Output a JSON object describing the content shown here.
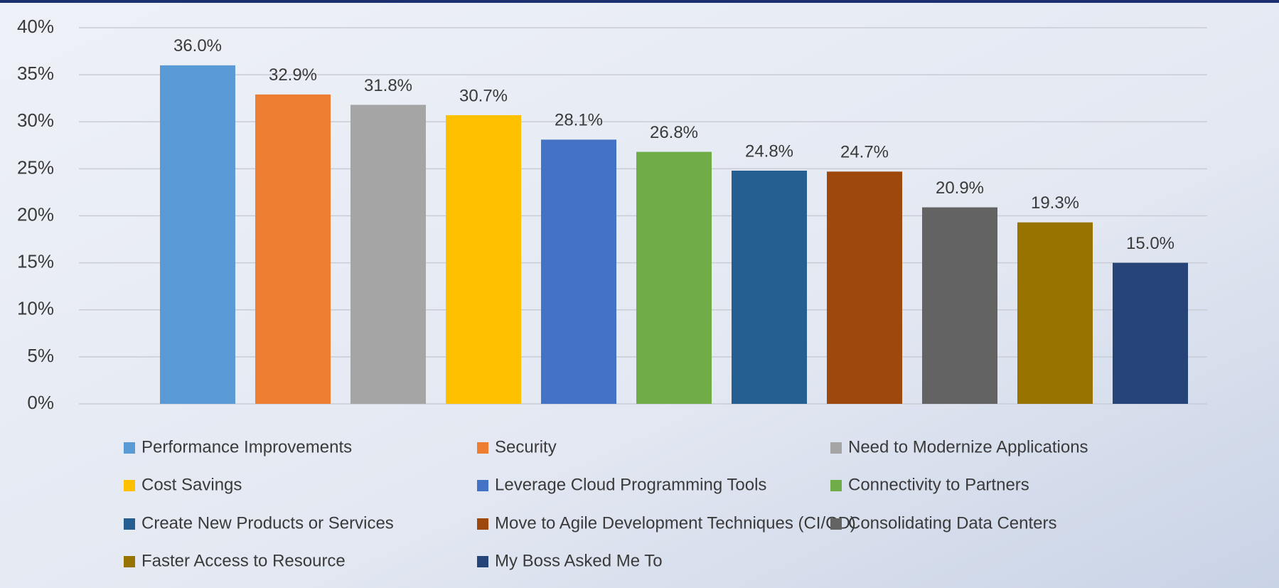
{
  "chart_data": {
    "type": "bar",
    "categories": [
      "Performance Improvements",
      "Security",
      "Need to Modernize Applications",
      "Cost Savings",
      "Leverage Cloud Programming Tools",
      "Connectivity to Partners",
      "Create New Products or Services",
      "Move to Agile Development Techniques (CI/CD)",
      "Consolidating Data Centers",
      "Faster Access to Resource",
      "My Boss Asked Me To"
    ],
    "values": [
      36.0,
      32.9,
      31.8,
      30.7,
      28.1,
      26.8,
      24.8,
      24.7,
      20.9,
      19.3,
      15.0
    ],
    "value_labels": [
      "36.0%",
      "32.9%",
      "31.8%",
      "30.7%",
      "28.1%",
      "26.8%",
      "24.8%",
      "24.7%",
      "20.9%",
      "19.3%",
      "15.0%"
    ],
    "colors": [
      "#5b9bd5",
      "#ed7d31",
      "#a5a5a5",
      "#ffc000",
      "#4472c4",
      "#70ad47",
      "#255e91",
      "#9e480e",
      "#636363",
      "#997300",
      "#264478"
    ],
    "ylim": [
      0,
      40
    ],
    "yticks": [
      {
        "value": 0,
        "label": "0%"
      },
      {
        "value": 5,
        "label": "5%"
      },
      {
        "value": 10,
        "label": "10%"
      },
      {
        "value": 15,
        "label": "15%"
      },
      {
        "value": 20,
        "label": "20%"
      },
      {
        "value": 25,
        "label": "25%"
      },
      {
        "value": 30,
        "label": "30%"
      },
      {
        "value": 35,
        "label": "35%"
      },
      {
        "value": 40,
        "label": "40%"
      }
    ],
    "grid": true,
    "legend": "bottom"
  }
}
